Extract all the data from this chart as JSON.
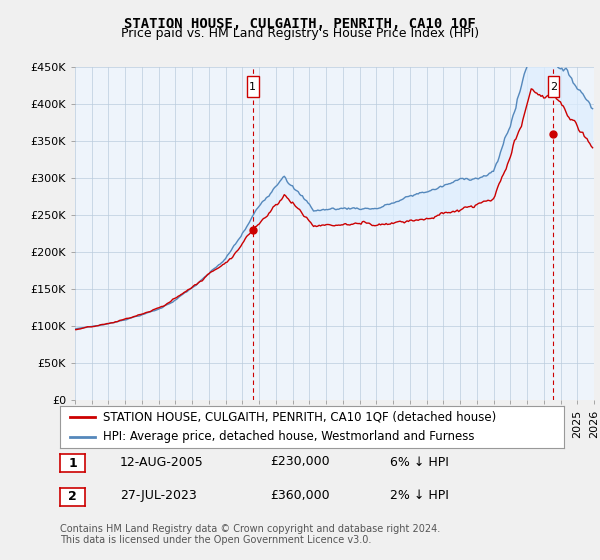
{
  "title": "STATION HOUSE, CULGAITH, PENRITH, CA10 1QF",
  "subtitle": "Price paid vs. HM Land Registry's House Price Index (HPI)",
  "ylabel_ticks": [
    "£0",
    "£50K",
    "£100K",
    "£150K",
    "£200K",
    "£250K",
    "£300K",
    "£350K",
    "£400K",
    "£450K"
  ],
  "ytick_values": [
    0,
    50000,
    100000,
    150000,
    200000,
    250000,
    300000,
    350000,
    400000,
    450000
  ],
  "ylim": [
    0,
    450000
  ],
  "xlim_start": 1995.0,
  "xlim_end": 2026.0,
  "sale1_x": 2005.617,
  "sale1_y": 230000,
  "sale1_label": "1",
  "sale2_x": 2023.575,
  "sale2_y": 360000,
  "sale2_label": "2",
  "vline1_x": 2005.617,
  "vline2_x": 2023.575,
  "legend_line1": "STATION HOUSE, CULGAITH, PENRITH, CA10 1QF (detached house)",
  "legend_line2": "HPI: Average price, detached house, Westmorland and Furness",
  "table_row1": [
    "1",
    "12-AUG-2005",
    "£230,000",
    "6% ↓ HPI"
  ],
  "table_row2": [
    "2",
    "27-JUL-2023",
    "£360,000",
    "2% ↓ HPI"
  ],
  "footnote": "Contains HM Land Registry data © Crown copyright and database right 2024.\nThis data is licensed under the Open Government Licence v3.0.",
  "color_red": "#cc0000",
  "color_blue": "#5588bb",
  "color_fill": "#ddeeff",
  "color_vline": "#cc0000",
  "bg_color": "#f0f0f0",
  "plot_bg": "#eef4fb",
  "title_fontsize": 10,
  "subtitle_fontsize": 9,
  "tick_fontsize": 8,
  "legend_fontsize": 8.5
}
